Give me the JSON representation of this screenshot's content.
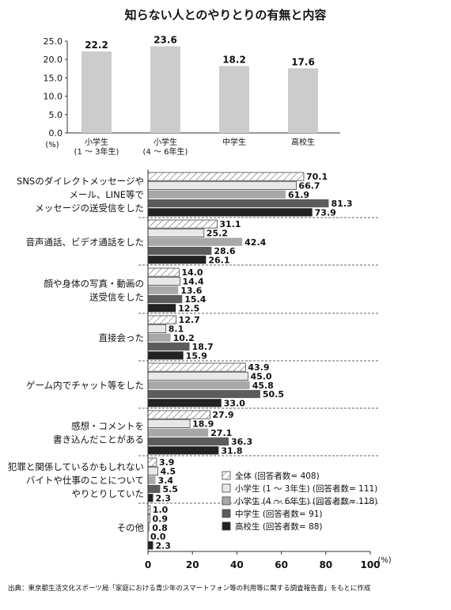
{
  "title": "知らない人とのやりとりの有無と内容",
  "source": "出典：東京都生活文化スポーツ局「家庭における青少年のスマートフォン等の利用等に関する調査報告書」をもとに作成",
  "colors": {
    "top_bar": "#cccccc",
    "series": [
      "hatch",
      "#e8e8e8",
      "#a8a8a8",
      "#5c5c5c",
      "#222222"
    ],
    "separator": "#666666"
  },
  "chart_data": [
    {
      "type": "bar",
      "unit_label": "(%)",
      "ylim": [
        0,
        25
      ],
      "yticks": [
        "25.0",
        "20.0",
        "15.0",
        "10.0",
        "5.0",
        "0.0"
      ],
      "categories": [
        [
          "小学生",
          "(1 ～ 3年生)"
        ],
        [
          "小学生",
          "(4 ～ 6年生)"
        ],
        [
          "中学生"
        ],
        [
          "高校生"
        ]
      ],
      "values": [
        22.2,
        23.6,
        18.2,
        17.6
      ],
      "value_labels": [
        "22.2",
        "23.6",
        "18.2",
        "17.6"
      ]
    },
    {
      "type": "bar",
      "orientation": "horizontal",
      "xlim": [
        0,
        100
      ],
      "xticks": [
        "0",
        "20",
        "40",
        "60",
        "80",
        "100"
      ],
      "unit_label": "(%)",
      "series": [
        {
          "name": "全体 (回答者数= 408)"
        },
        {
          "name": "小学生 (1 ～ 3年生) (回答者数= 111)"
        },
        {
          "name": "小学生 (4 ～ 6年生) (回答者数= 118)"
        },
        {
          "name": "中学生 (回答者数= 91)"
        },
        {
          "name": "高校生 (回答者数= 88)"
        }
      ],
      "groups": [
        {
          "label": [
            "SNSのダイレクトメッセージや",
            "メール、LINE等で",
            "メッセージの送受信をした"
          ],
          "values": [
            70.1,
            66.7,
            61.9,
            81.3,
            73.9
          ],
          "labels": [
            "70.1",
            "66.7",
            "61.9",
            "81.3",
            "73.9"
          ]
        },
        {
          "label": [
            "音声通話、ビデオ通話をした"
          ],
          "values": [
            31.1,
            25.2,
            42.4,
            28.6,
            26.1
          ],
          "labels": [
            "31.1",
            "25.2",
            "42.4",
            "28.6",
            "26.1"
          ]
        },
        {
          "label": [
            "顔や身体の写真・動画の",
            "送受信をした"
          ],
          "values": [
            14.0,
            14.4,
            13.6,
            15.4,
            12.5
          ],
          "labels": [
            "14.0",
            "14.4",
            "13.6",
            "15.4",
            "12.5"
          ]
        },
        {
          "label": [
            "直接会った"
          ],
          "values": [
            12.7,
            8.1,
            10.2,
            18.7,
            15.9
          ],
          "labels": [
            "12.7",
            "8.1",
            "10.2",
            "18.7",
            "15.9"
          ]
        },
        {
          "label": [
            "ゲーム内でチャット等をした"
          ],
          "values": [
            43.9,
            45.0,
            45.8,
            50.5,
            33.0
          ],
          "labels": [
            "43.9",
            "45.0",
            "45.8",
            "50.5",
            "33.0"
          ]
        },
        {
          "label": [
            "感想・コメントを",
            "書き込んだことがある"
          ],
          "values": [
            27.9,
            18.9,
            27.1,
            36.3,
            31.8
          ],
          "labels": [
            "27.9",
            "18.9",
            "27.1",
            "36.3",
            "31.8"
          ]
        },
        {
          "label": [
            "犯罪と関係しているかもしれない",
            "バイトや仕事のことについて",
            "やりとりしていた"
          ],
          "values": [
            3.9,
            4.5,
            3.4,
            5.5,
            2.3
          ],
          "labels": [
            "3.9",
            "4.5",
            "3.4",
            "5.5",
            "2.3"
          ]
        },
        {
          "label": [
            "その他"
          ],
          "values": [
            1.0,
            0.9,
            0.8,
            0.0,
            2.3
          ],
          "labels": [
            "1.0",
            "0.9",
            "0.8",
            "0.0",
            "2.3"
          ]
        }
      ]
    }
  ]
}
